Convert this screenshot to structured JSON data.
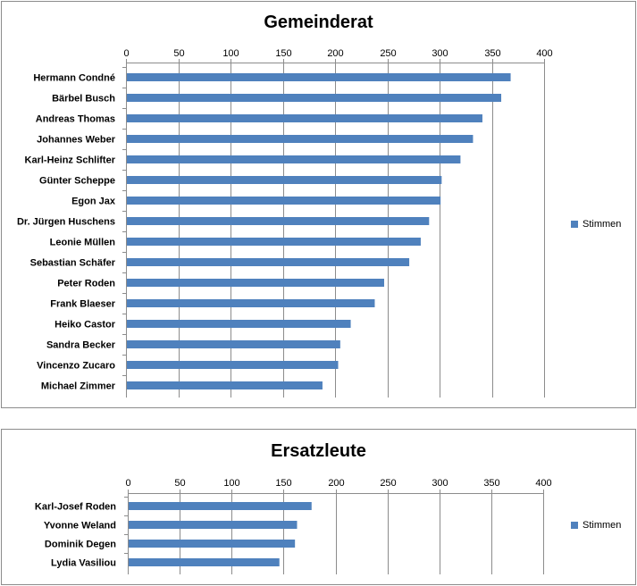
{
  "chart_data": [
    {
      "type": "bar",
      "orientation": "horizontal",
      "title": "Gemeinderat",
      "categories": [
        "Hermann Condné",
        "Bärbel Busch",
        "Andreas Thomas",
        "Johannes Weber",
        "Karl-Heinz Schlifter",
        "Günter Scheppe",
        "Egon Jax",
        "Dr. Jürgen Huschens",
        "Leonie Müllen",
        "Sebastian Schäfer",
        "Peter Roden",
        "Frank Blaeser",
        "Heiko Castor",
        "Sandra Becker",
        "Vincenzo Zucaro",
        "Michael Zimmer"
      ],
      "series": [
        {
          "name": "Stimmen",
          "values": [
            368,
            359,
            341,
            332,
            320,
            302,
            301,
            290,
            282,
            271,
            247,
            238,
            215,
            205,
            203,
            188
          ],
          "color": "#4f81bd"
        }
      ],
      "xlim": [
        0,
        400
      ],
      "xticks": [
        0,
        50,
        100,
        150,
        200,
        250,
        300,
        350,
        400
      ],
      "grid": true,
      "axis_position": "top",
      "legend_position": "right"
    },
    {
      "type": "bar",
      "orientation": "horizontal",
      "title": "Ersatzleute",
      "categories": [
        "Karl-Josef Roden",
        "Yvonne Weland",
        "Dominik Degen",
        "Lydia Vasiliou"
      ],
      "series": [
        {
          "name": "Stimmen",
          "values": [
            177,
            163,
            161,
            146
          ],
          "color": "#4f81bd"
        }
      ],
      "xlim": [
        0,
        400
      ],
      "xticks": [
        0,
        50,
        100,
        150,
        200,
        250,
        300,
        350,
        400
      ],
      "grid": true,
      "axis_position": "top",
      "legend_position": "right"
    }
  ]
}
